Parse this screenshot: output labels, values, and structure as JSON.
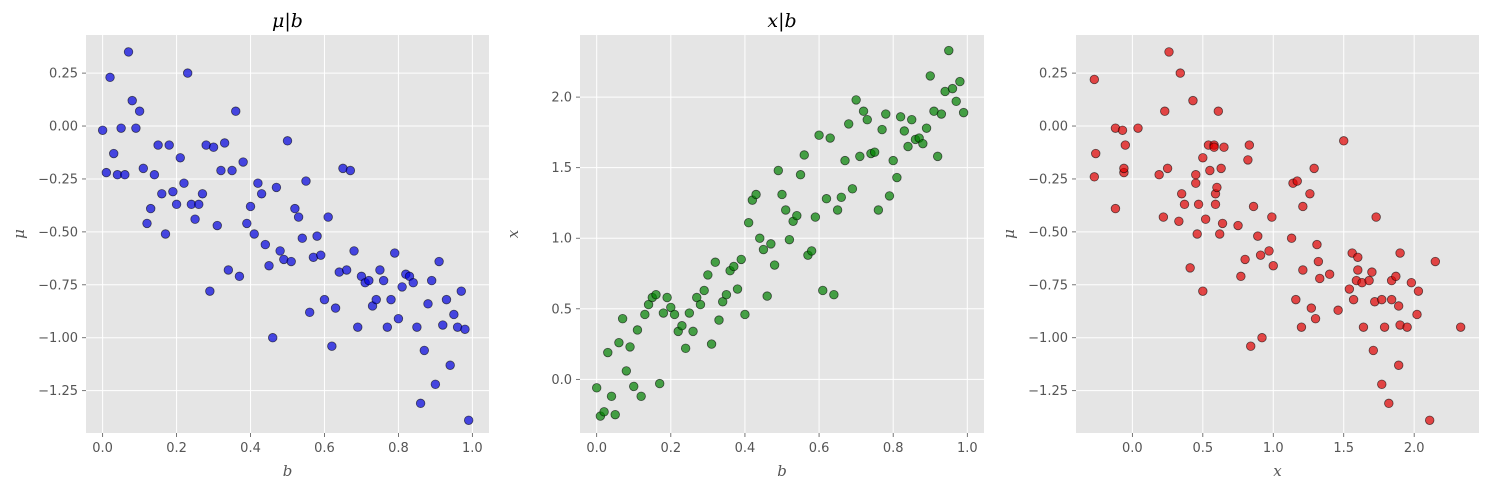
{
  "chart_data": [
    {
      "type": "scatter",
      "title": "μ|b",
      "xlabel": "b",
      "ylabel": "μ",
      "xlim": [
        -0.045,
        1.045
      ],
      "ylim": [
        -1.45,
        0.43
      ],
      "xticks": [
        0.0,
        0.2,
        0.4,
        0.6,
        0.8,
        1.0
      ],
      "xtick_labels": [
        "0.0",
        "0.2",
        "0.4",
        "0.6",
        "0.8",
        "1.0"
      ],
      "yticks": [
        0.25,
        0.0,
        -0.25,
        -0.5,
        -0.75,
        -1.0,
        -1.25
      ],
      "ytick_labels": [
        "0.25",
        "0.00",
        "−0.25",
        "−0.50",
        "−0.75",
        "−1.00",
        "−1.25"
      ],
      "grid": true,
      "color": "#0000dd",
      "points": [
        [
          0.0,
          -0.02
        ],
        [
          0.01,
          -0.22
        ],
        [
          0.02,
          0.23
        ],
        [
          0.03,
          -0.13
        ],
        [
          0.04,
          -0.23
        ],
        [
          0.05,
          -0.01
        ],
        [
          0.06,
          -0.23
        ],
        [
          0.07,
          0.35
        ],
        [
          0.08,
          0.12
        ],
        [
          0.09,
          -0.01
        ],
        [
          0.1,
          0.07
        ],
        [
          0.11,
          -0.2
        ],
        [
          0.12,
          -0.46
        ],
        [
          0.13,
          -0.39
        ],
        [
          0.14,
          -0.23
        ],
        [
          0.15,
          -0.09
        ],
        [
          0.16,
          -0.32
        ],
        [
          0.17,
          -0.51
        ],
        [
          0.18,
          -0.09
        ],
        [
          0.19,
          -0.31
        ],
        [
          0.2,
          -0.37
        ],
        [
          0.21,
          -0.15
        ],
        [
          0.22,
          -0.27
        ],
        [
          0.23,
          0.25
        ],
        [
          0.24,
          -0.37
        ],
        [
          0.25,
          -0.44
        ],
        [
          0.26,
          -0.37
        ],
        [
          0.27,
          -0.32
        ],
        [
          0.28,
          -0.09
        ],
        [
          0.29,
          -0.78
        ],
        [
          0.3,
          -0.1
        ],
        [
          0.31,
          -0.47
        ],
        [
          0.32,
          -0.21
        ],
        [
          0.33,
          -0.08
        ],
        [
          0.34,
          -0.68
        ],
        [
          0.35,
          -0.21
        ],
        [
          0.36,
          0.07
        ],
        [
          0.37,
          -0.71
        ],
        [
          0.38,
          -0.17
        ],
        [
          0.39,
          -0.46
        ],
        [
          0.4,
          -0.38
        ],
        [
          0.41,
          -0.51
        ],
        [
          0.42,
          -0.27
        ],
        [
          0.43,
          -0.32
        ],
        [
          0.44,
          -0.56
        ],
        [
          0.45,
          -0.66
        ],
        [
          0.46,
          -1.0
        ],
        [
          0.47,
          -0.29
        ],
        [
          0.48,
          -0.59
        ],
        [
          0.49,
          -0.63
        ],
        [
          0.5,
          -0.07
        ],
        [
          0.51,
          -0.64
        ],
        [
          0.52,
          -0.39
        ],
        [
          0.53,
          -0.43
        ],
        [
          0.54,
          -0.53
        ],
        [
          0.55,
          -0.26
        ],
        [
          0.56,
          -0.88
        ],
        [
          0.57,
          -0.62
        ],
        [
          0.58,
          -0.52
        ],
        [
          0.59,
          -0.61
        ],
        [
          0.6,
          -0.82
        ],
        [
          0.61,
          -0.43
        ],
        [
          0.62,
          -1.04
        ],
        [
          0.63,
          -0.86
        ],
        [
          0.64,
          -0.69
        ],
        [
          0.65,
          -0.2
        ],
        [
          0.66,
          -0.68
        ],
        [
          0.67,
          -0.21
        ],
        [
          0.68,
          -0.59
        ],
        [
          0.69,
          -0.95
        ],
        [
          0.7,
          -0.71
        ],
        [
          0.71,
          -0.74
        ],
        [
          0.72,
          -0.73
        ],
        [
          0.73,
          -0.85
        ],
        [
          0.74,
          -0.82
        ],
        [
          0.75,
          -0.68
        ],
        [
          0.76,
          -0.73
        ],
        [
          0.77,
          -0.95
        ],
        [
          0.78,
          -0.82
        ],
        [
          0.79,
          -0.6
        ],
        [
          0.8,
          -0.91
        ],
        [
          0.81,
          -0.76
        ],
        [
          0.82,
          -0.7
        ],
        [
          0.83,
          -0.71
        ],
        [
          0.84,
          -0.74
        ],
        [
          0.85,
          -0.95
        ],
        [
          0.86,
          -1.31
        ],
        [
          0.87,
          -1.06
        ],
        [
          0.88,
          -0.84
        ],
        [
          0.89,
          -0.73
        ],
        [
          0.9,
          -1.22
        ],
        [
          0.91,
          -0.64
        ],
        [
          0.92,
          -0.94
        ],
        [
          0.93,
          -0.82
        ],
        [
          0.94,
          -1.13
        ],
        [
          0.95,
          -0.89
        ],
        [
          0.96,
          -0.95
        ],
        [
          0.97,
          -0.78
        ],
        [
          0.98,
          -0.96
        ],
        [
          0.99,
          -1.39
        ]
      ]
    },
    {
      "type": "scatter",
      "title": "x|b",
      "xlabel": "b",
      "ylabel": "x",
      "xlim": [
        -0.045,
        1.045
      ],
      "ylim": [
        -0.38,
        2.44
      ],
      "xticks": [
        0.0,
        0.2,
        0.4,
        0.6,
        0.8,
        1.0
      ],
      "xtick_labels": [
        "0.0",
        "0.2",
        "0.4",
        "0.6",
        "0.8",
        "1.0"
      ],
      "yticks": [
        0.0,
        0.5,
        1.0,
        1.5,
        2.0
      ],
      "ytick_labels": [
        "0.0",
        "0.5",
        "1.0",
        "1.5",
        "2.0"
      ],
      "grid": true,
      "color": "#008000",
      "points": [
        [
          0.0,
          -0.06
        ],
        [
          0.01,
          -0.26
        ],
        [
          0.02,
          -0.23
        ],
        [
          0.03,
          0.19
        ],
        [
          0.04,
          -0.12
        ],
        [
          0.05,
          -0.25
        ],
        [
          0.06,
          0.26
        ],
        [
          0.07,
          0.43
        ],
        [
          0.08,
          0.06
        ],
        [
          0.09,
          0.23
        ],
        [
          0.1,
          -0.05
        ],
        [
          0.11,
          0.35
        ],
        [
          0.12,
          -0.12
        ],
        [
          0.13,
          0.46
        ],
        [
          0.14,
          0.53
        ],
        [
          0.15,
          0.58
        ],
        [
          0.16,
          0.6
        ],
        [
          0.17,
          -0.03
        ],
        [
          0.18,
          0.47
        ],
        [
          0.19,
          0.58
        ],
        [
          0.2,
          0.51
        ],
        [
          0.21,
          0.46
        ],
        [
          0.22,
          0.34
        ],
        [
          0.23,
          0.38
        ],
        [
          0.24,
          0.22
        ],
        [
          0.25,
          0.47
        ],
        [
          0.26,
          0.34
        ],
        [
          0.27,
          0.58
        ],
        [
          0.28,
          0.53
        ],
        [
          0.29,
          0.63
        ],
        [
          0.3,
          0.74
        ],
        [
          0.31,
          0.25
        ],
        [
          0.32,
          0.83
        ],
        [
          0.33,
          0.42
        ],
        [
          0.34,
          0.55
        ],
        [
          0.35,
          0.6
        ],
        [
          0.36,
          0.77
        ],
        [
          0.37,
          0.8
        ],
        [
          0.38,
          0.64
        ],
        [
          0.39,
          0.85
        ],
        [
          0.4,
          0.46
        ],
        [
          0.41,
          1.11
        ],
        [
          0.42,
          1.27
        ],
        [
          0.43,
          1.31
        ],
        [
          0.44,
          1.0
        ],
        [
          0.45,
          0.92
        ],
        [
          0.46,
          0.59
        ],
        [
          0.47,
          0.96
        ],
        [
          0.48,
          0.81
        ],
        [
          0.49,
          1.48
        ],
        [
          0.5,
          1.31
        ],
        [
          0.51,
          1.2
        ],
        [
          0.52,
          0.99
        ],
        [
          0.53,
          1.12
        ],
        [
          0.54,
          1.16
        ],
        [
          0.55,
          1.45
        ],
        [
          0.56,
          1.59
        ],
        [
          0.57,
          0.88
        ],
        [
          0.58,
          0.91
        ],
        [
          0.59,
          1.15
        ],
        [
          0.6,
          1.73
        ],
        [
          0.61,
          0.63
        ],
        [
          0.62,
          1.28
        ],
        [
          0.63,
          1.71
        ],
        [
          0.64,
          0.6
        ],
        [
          0.65,
          1.2
        ],
        [
          0.66,
          1.29
        ],
        [
          0.67,
          1.55
        ],
        [
          0.68,
          1.81
        ],
        [
          0.69,
          1.35
        ],
        [
          0.7,
          1.98
        ],
        [
          0.71,
          1.58
        ],
        [
          0.72,
          1.9
        ],
        [
          0.73,
          1.84
        ],
        [
          0.74,
          1.6
        ],
        [
          0.75,
          1.61
        ],
        [
          0.76,
          1.2
        ],
        [
          0.77,
          1.77
        ],
        [
          0.78,
          1.88
        ],
        [
          0.79,
          1.3
        ],
        [
          0.8,
          1.55
        ],
        [
          0.81,
          1.43
        ],
        [
          0.82,
          1.86
        ],
        [
          0.83,
          1.76
        ],
        [
          0.84,
          1.65
        ],
        [
          0.85,
          1.84
        ],
        [
          0.86,
          1.7
        ],
        [
          0.87,
          1.71
        ],
        [
          0.88,
          1.67
        ],
        [
          0.89,
          1.78
        ],
        [
          0.9,
          2.15
        ],
        [
          0.91,
          1.9
        ],
        [
          0.92,
          1.58
        ],
        [
          0.93,
          1.88
        ],
        [
          0.94,
          2.04
        ],
        [
          0.95,
          2.33
        ],
        [
          0.96,
          2.06
        ],
        [
          0.97,
          1.97
        ],
        [
          0.98,
          2.11
        ],
        [
          0.99,
          1.89
        ]
      ]
    },
    {
      "type": "scatter",
      "title": "",
      "xlabel": "x",
      "ylabel": "μ",
      "xlim": [
        -0.4,
        2.46
      ],
      "ylim": [
        -1.45,
        0.43
      ],
      "xticks": [
        0.0,
        0.5,
        1.0,
        1.5,
        2.0
      ],
      "xtick_labels": [
        "0.0",
        "0.5",
        "1.0",
        "1.5",
        "2.0"
      ],
      "yticks": [
        0.25,
        0.0,
        -0.25,
        -0.5,
        -0.75,
        -1.0,
        -1.25
      ],
      "ytick_labels": [
        "0.25",
        "0.00",
        "−0.25",
        "−0.50",
        "−0.75",
        "−1.00",
        "−1.25"
      ],
      "grid": true,
      "color": "#e00000",
      "points": [
        [
          -0.27,
          0.22
        ],
        [
          -0.26,
          -0.13
        ],
        [
          -0.27,
          -0.24
        ],
        [
          -0.12,
          -0.01
        ],
        [
          -0.12,
          -0.39
        ],
        [
          -0.07,
          -0.02
        ],
        [
          -0.06,
          -0.22
        ],
        [
          -0.06,
          -0.2
        ],
        [
          -0.05,
          -0.09
        ],
        [
          0.04,
          -0.01
        ],
        [
          0.19,
          -0.23
        ],
        [
          0.22,
          -0.43
        ],
        [
          0.23,
          0.07
        ],
        [
          0.25,
          -0.2
        ],
        [
          0.26,
          0.35
        ],
        [
          0.33,
          -0.45
        ],
        [
          0.34,
          0.25
        ],
        [
          0.35,
          -0.32
        ],
        [
          0.37,
          -0.37
        ],
        [
          0.41,
          -0.67
        ],
        [
          0.43,
          0.12
        ],
        [
          0.45,
          -0.27
        ],
        [
          0.45,
          -0.23
        ],
        [
          0.46,
          -0.51
        ],
        [
          0.47,
          -0.37
        ],
        [
          0.5,
          -0.15
        ],
        [
          0.5,
          -0.78
        ],
        [
          0.52,
          -0.44
        ],
        [
          0.54,
          -0.09
        ],
        [
          0.55,
          -0.21
        ],
        [
          0.58,
          -0.09
        ],
        [
          0.58,
          -0.1
        ],
        [
          0.59,
          -0.37
        ],
        [
          0.59,
          -0.32
        ],
        [
          0.6,
          -0.29
        ],
        [
          0.61,
          0.07
        ],
        [
          0.62,
          -0.51
        ],
        [
          0.63,
          -0.2
        ],
        [
          0.64,
          -0.46
        ],
        [
          0.65,
          -0.1
        ],
        [
          0.75,
          -0.47
        ],
        [
          0.77,
          -0.71
        ],
        [
          0.8,
          -0.63
        ],
        [
          0.82,
          -0.16
        ],
        [
          0.83,
          -0.09
        ],
        [
          0.84,
          -1.04
        ],
        [
          0.86,
          -0.38
        ],
        [
          0.89,
          -0.52
        ],
        [
          0.91,
          -0.61
        ],
        [
          0.92,
          -1.0
        ],
        [
          0.97,
          -0.59
        ],
        [
          0.99,
          -0.43
        ],
        [
          1.0,
          -0.66
        ],
        [
          1.13,
          -0.53
        ],
        [
          1.14,
          -0.27
        ],
        [
          1.16,
          -0.82
        ],
        [
          1.17,
          -0.26
        ],
        [
          1.2,
          -0.95
        ],
        [
          1.21,
          -0.38
        ],
        [
          1.21,
          -0.68
        ],
        [
          1.26,
          -0.32
        ],
        [
          1.27,
          -0.86
        ],
        [
          1.29,
          -0.2
        ],
        [
          1.3,
          -0.91
        ],
        [
          1.31,
          -0.56
        ],
        [
          1.32,
          -0.64
        ],
        [
          1.33,
          -0.72
        ],
        [
          1.4,
          -0.7
        ],
        [
          1.46,
          -0.87
        ],
        [
          1.5,
          -0.07
        ],
        [
          1.54,
          -0.77
        ],
        [
          1.56,
          -0.6
        ],
        [
          1.57,
          -0.82
        ],
        [
          1.59,
          -0.73
        ],
        [
          1.6,
          -0.68
        ],
        [
          1.6,
          -0.62
        ],
        [
          1.63,
          -0.74
        ],
        [
          1.64,
          -0.95
        ],
        [
          1.68,
          -0.73
        ],
        [
          1.7,
          -0.69
        ],
        [
          1.71,
          -1.06
        ],
        [
          1.72,
          -0.83
        ],
        [
          1.73,
          -0.43
        ],
        [
          1.77,
          -0.82
        ],
        [
          1.77,
          -1.22
        ],
        [
          1.79,
          -0.95
        ],
        [
          1.82,
          -1.31
        ],
        [
          1.84,
          -0.82
        ],
        [
          1.84,
          -0.73
        ],
        [
          1.87,
          -0.71
        ],
        [
          1.89,
          -1.13
        ],
        [
          1.89,
          -0.85
        ],
        [
          1.9,
          -0.94
        ],
        [
          1.9,
          -0.6
        ],
        [
          1.95,
          -0.95
        ],
        [
          1.98,
          -0.74
        ],
        [
          2.02,
          -0.89
        ],
        [
          2.03,
          -0.78
        ],
        [
          2.11,
          -1.39
        ],
        [
          2.15,
          -0.64
        ],
        [
          2.33,
          -0.95
        ]
      ]
    }
  ]
}
